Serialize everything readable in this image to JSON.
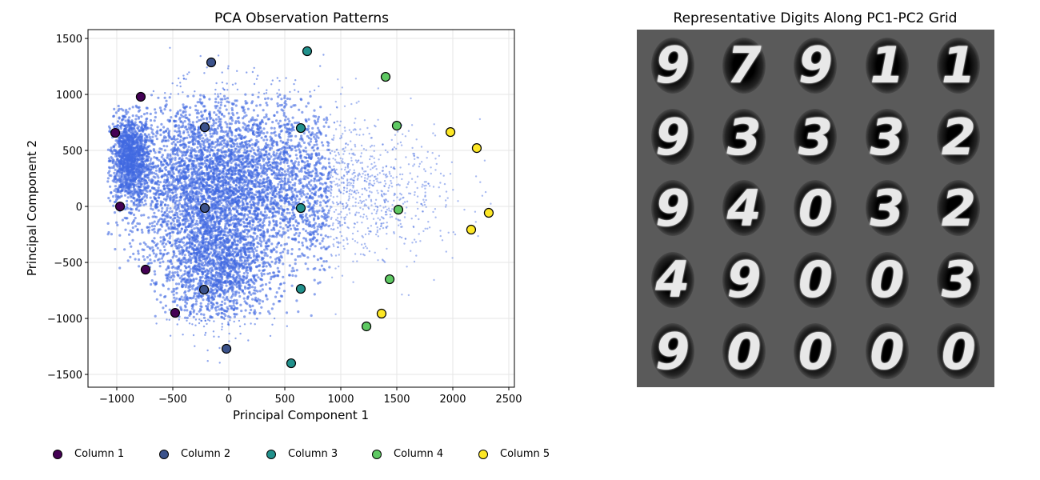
{
  "chart_data": [
    {
      "type": "scatter",
      "title": "PCA Observation Patterns",
      "xlabel": "Principal Component 1",
      "ylabel": "Principal Component 2",
      "xlim": [
        -1257,
        2550
      ],
      "ylim": [
        -1614,
        1579
      ],
      "xticks": [
        -1000,
        -500,
        0,
        500,
        1000,
        1500,
        2000,
        2500
      ],
      "yticks": [
        -1500,
        -1000,
        -500,
        0,
        500,
        1000,
        1500
      ],
      "grid": true,
      "background_cloud_color": "#4169e1",
      "legend_placement": "bottom",
      "series": [
        {
          "name": "Column 1",
          "color": "#440154",
          "x": [
            -786,
            -1014,
            -971,
            -743,
            -479
          ],
          "y": [
            979,
            657,
            0,
            -564,
            -950
          ]
        },
        {
          "name": "Column 2",
          "color": "#3b528b",
          "x": [
            -157,
            -214,
            -214,
            -221,
            -21
          ],
          "y": [
            1286,
            707,
            -14,
            -743,
            -1271
          ]
        },
        {
          "name": "Column 3",
          "color": "#21918c",
          "x": [
            700,
            643,
            643,
            643,
            557
          ],
          "y": [
            1386,
            700,
            -14,
            -736,
            -1400
          ]
        },
        {
          "name": "Column 4",
          "color": "#5ec962",
          "x": [
            1400,
            1500,
            1514,
            1436,
            1229
          ],
          "y": [
            1157,
            721,
            -29,
            -650,
            -1071
          ]
        },
        {
          "name": "Column 5",
          "color": "#fde725",
          "x": [
            1979,
            2214,
            2321,
            2164,
            1364
          ],
          "y": [
            664,
            521,
            -57,
            -207,
            -957
          ]
        }
      ]
    }
  ],
  "image_panel": {
    "title": "Representative Digits Along PC1-PC2 Grid",
    "digits": [
      [
        "9",
        "7",
        "9",
        "1",
        "1"
      ],
      [
        "9",
        "3",
        "3",
        "3",
        "2"
      ],
      [
        "9",
        "4",
        "0",
        "3",
        "2"
      ],
      [
        "4",
        "9",
        "0",
        "0",
        "3"
      ],
      [
        "9",
        "0",
        "0",
        "0",
        "0"
      ]
    ]
  }
}
